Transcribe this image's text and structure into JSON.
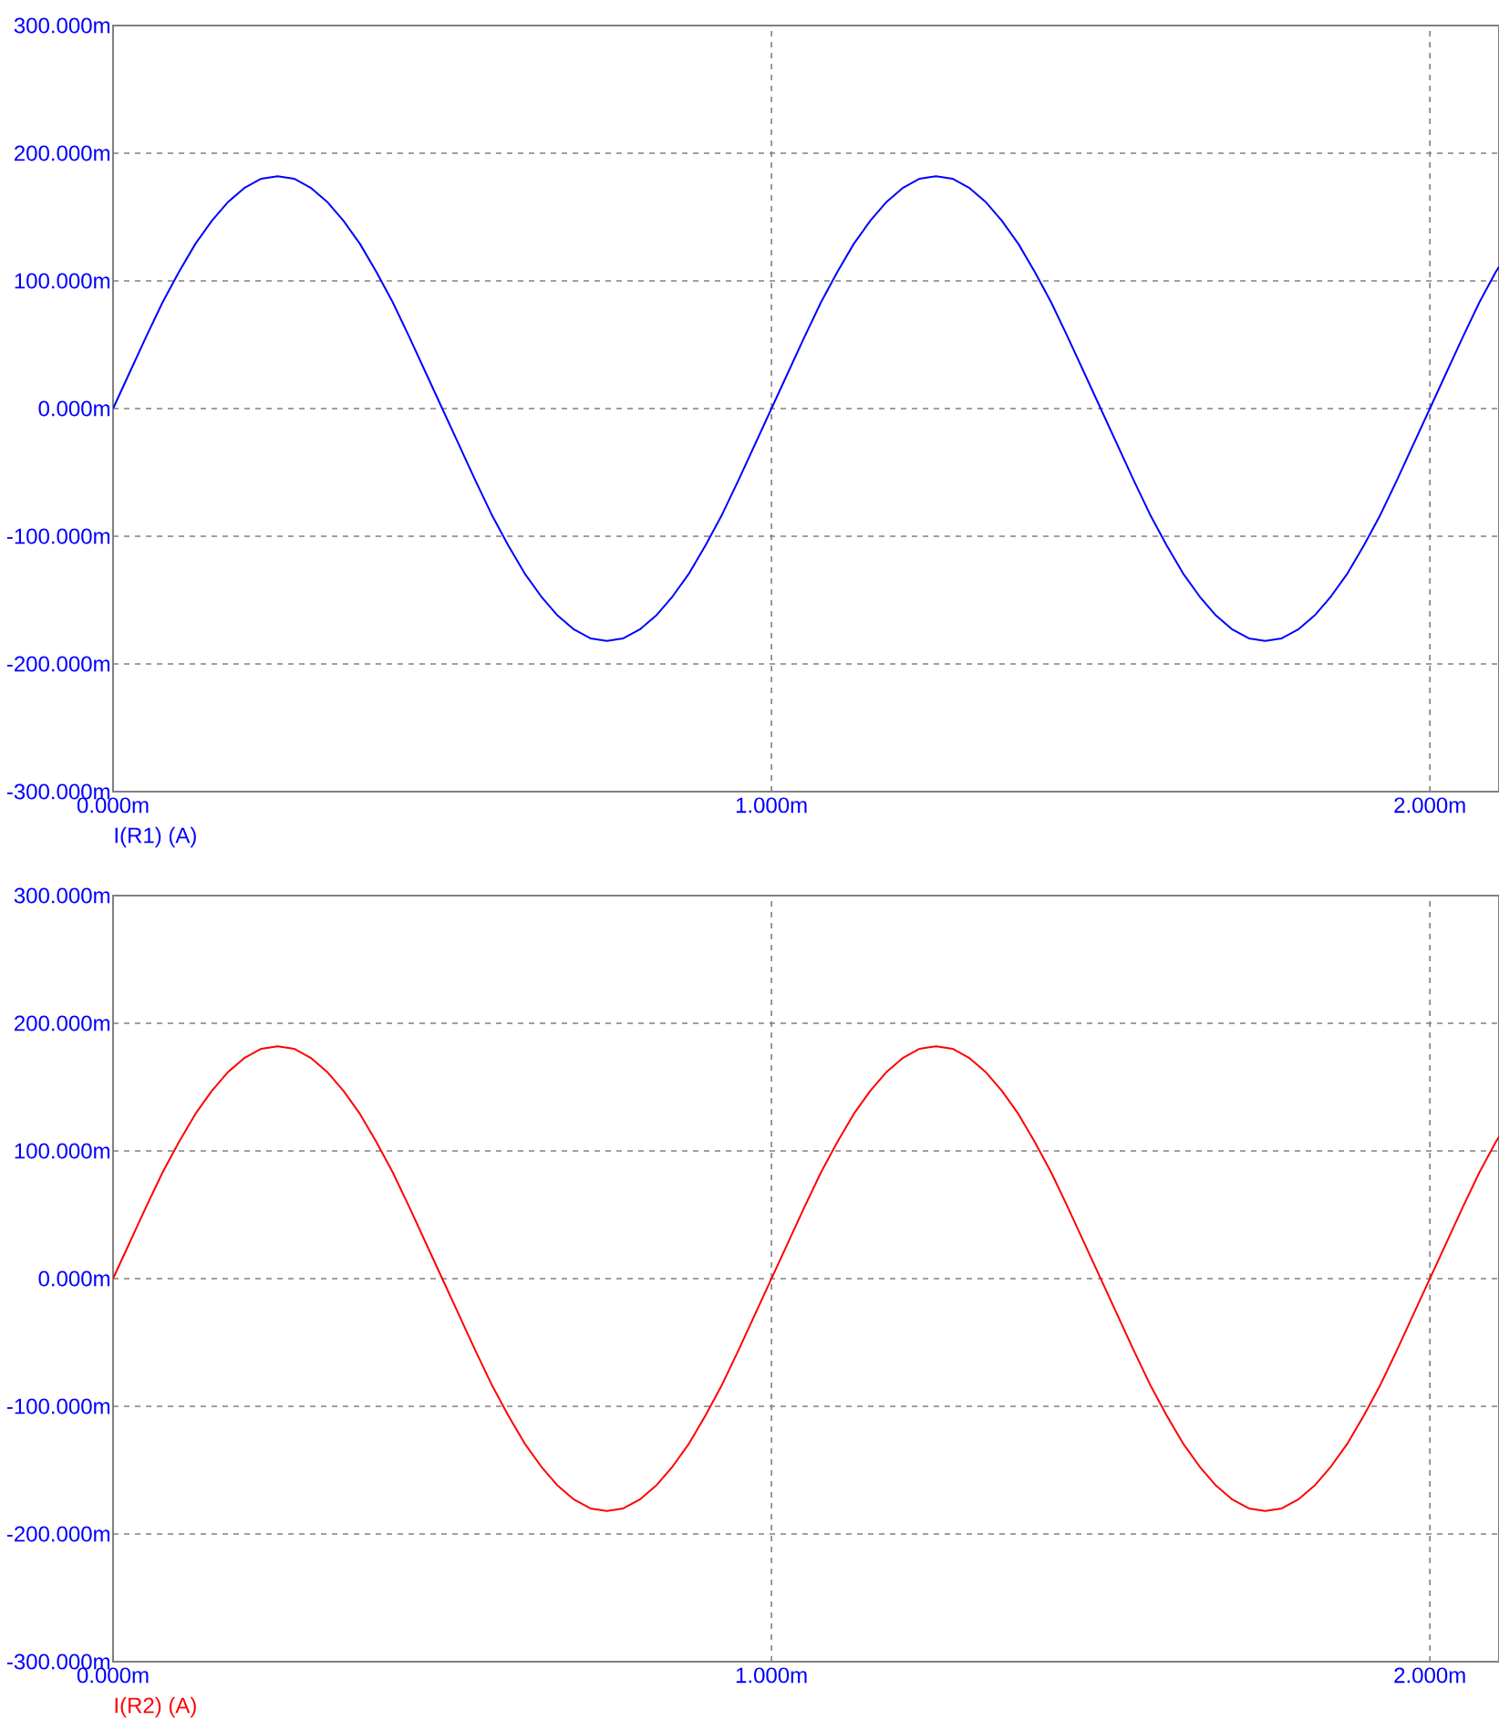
{
  "chart_data": [
    {
      "type": "line",
      "x": [
        0,
        0.025,
        0.05,
        0.075,
        0.1,
        0.125,
        0.15,
        0.175,
        0.2,
        0.225,
        0.25,
        0.275,
        0.3,
        0.325,
        0.35,
        0.375,
        0.4,
        0.425,
        0.45,
        0.475,
        0.5,
        0.525,
        0.55,
        0.575,
        0.6,
        0.625,
        0.65,
        0.675,
        0.7,
        0.725,
        0.75,
        0.775,
        0.8,
        0.825,
        0.85,
        0.875,
        0.9,
        0.925,
        0.95,
        0.975,
        1.0,
        1.025,
        1.05,
        1.075,
        1.1,
        1.125,
        1.15,
        1.175,
        1.2,
        1.225,
        1.25,
        1.275,
        1.3,
        1.325,
        1.35,
        1.375,
        1.4,
        1.425,
        1.45,
        1.475,
        1.5,
        1.525,
        1.55,
        1.575,
        1.6,
        1.625,
        1.65,
        1.675,
        1.7,
        1.725,
        1.75,
        1.775,
        1.8,
        1.825,
        1.85,
        1.875,
        1.9,
        1.925,
        1.95,
        1.975,
        2.0,
        2.025,
        2.05,
        2.075,
        2.1,
        2.105
      ],
      "series": [
        {
          "name": "I(R1) (A)",
          "color": "#0000ff",
          "values": [
            0,
            28,
            56,
            83,
            107,
            129,
            147,
            162,
            173,
            180,
            182,
            180,
            173,
            162,
            147,
            129,
            107,
            83,
            56,
            28,
            0,
            -28,
            -56,
            -83,
            -107,
            -129,
            -147,
            -162,
            -173,
            -180,
            -182,
            -180,
            -173,
            -162,
            -147,
            -129,
            -107,
            -83,
            -56,
            -28,
            0,
            28,
            56,
            83,
            107,
            129,
            147,
            162,
            173,
            180,
            182,
            180,
            173,
            162,
            147,
            129,
            107,
            83,
            56,
            28,
            0,
            -28,
            -56,
            -83,
            -107,
            -129,
            -147,
            -162,
            -173,
            -180,
            -182,
            -180,
            -173,
            -162,
            -147,
            -129,
            -107,
            -83,
            -56,
            -28,
            0,
            28,
            56,
            83,
            107,
            111
          ]
        }
      ],
      "xlim": [
        0,
        2.105
      ],
      "ylim": [
        -300,
        300
      ],
      "xticks": [
        {
          "value": 0,
          "label": "0.000m"
        },
        {
          "value": 1,
          "label": "1.000m"
        },
        {
          "value": 2,
          "label": "2.000m"
        }
      ],
      "yticks": [
        {
          "value": -300,
          "label": "-300.000m"
        },
        {
          "value": -200,
          "label": "-200.000m"
        },
        {
          "value": -100,
          "label": "-100.000m"
        },
        {
          "value": 0,
          "label": "0.000m"
        },
        {
          "value": 100,
          "label": "100.000m"
        },
        {
          "value": 200,
          "label": "200.000m"
        },
        {
          "value": 300,
          "label": "300.000m"
        }
      ],
      "grid": true
    },
    {
      "type": "line",
      "x": [
        0,
        0.025,
        0.05,
        0.075,
        0.1,
        0.125,
        0.15,
        0.175,
        0.2,
        0.225,
        0.25,
        0.275,
        0.3,
        0.325,
        0.35,
        0.375,
        0.4,
        0.425,
        0.45,
        0.475,
        0.5,
        0.525,
        0.55,
        0.575,
        0.6,
        0.625,
        0.65,
        0.675,
        0.7,
        0.725,
        0.75,
        0.775,
        0.8,
        0.825,
        0.85,
        0.875,
        0.9,
        0.925,
        0.95,
        0.975,
        1.0,
        1.025,
        1.05,
        1.075,
        1.1,
        1.125,
        1.15,
        1.175,
        1.2,
        1.225,
        1.25,
        1.275,
        1.3,
        1.325,
        1.35,
        1.375,
        1.4,
        1.425,
        1.45,
        1.475,
        1.5,
        1.525,
        1.55,
        1.575,
        1.6,
        1.625,
        1.65,
        1.675,
        1.7,
        1.725,
        1.75,
        1.775,
        1.8,
        1.825,
        1.85,
        1.875,
        1.9,
        1.925,
        1.95,
        1.975,
        2.0,
        2.025,
        2.05,
        2.075,
        2.1,
        2.105
      ],
      "series": [
        {
          "name": "I(R2) (A)",
          "color": "#ff0000",
          "values": [
            0,
            28,
            56,
            83,
            107,
            129,
            147,
            162,
            173,
            180,
            182,
            180,
            173,
            162,
            147,
            129,
            107,
            83,
            56,
            28,
            0,
            -28,
            -56,
            -83,
            -107,
            -129,
            -147,
            -162,
            -173,
            -180,
            -182,
            -180,
            -173,
            -162,
            -147,
            -129,
            -107,
            -83,
            -56,
            -28,
            0,
            28,
            56,
            83,
            107,
            129,
            147,
            162,
            173,
            180,
            182,
            180,
            173,
            162,
            147,
            129,
            107,
            83,
            56,
            28,
            0,
            -28,
            -56,
            -83,
            -107,
            -129,
            -147,
            -162,
            -173,
            -180,
            -182,
            -180,
            -173,
            -162,
            -147,
            -129,
            -107,
            -83,
            -56,
            -28,
            0,
            28,
            56,
            83,
            107,
            111
          ]
        }
      ],
      "xlim": [
        0,
        2.105
      ],
      "ylim": [
        -300,
        300
      ],
      "xticks": [
        {
          "value": 0,
          "label": "0.000m"
        },
        {
          "value": 1,
          "label": "1.000m"
        },
        {
          "value": 2,
          "label": "2.000m"
        }
      ],
      "yticks": [
        {
          "value": -300,
          "label": "-300.000m"
        },
        {
          "value": -200,
          "label": "-200.000m"
        },
        {
          "value": -100,
          "label": "-100.000m"
        },
        {
          "value": 0,
          "label": "0.000m"
        },
        {
          "value": 100,
          "label": "100.000m"
        },
        {
          "value": 200,
          "label": "200.000m"
        },
        {
          "value": 300,
          "label": "300.000m"
        }
      ],
      "grid": true
    }
  ]
}
